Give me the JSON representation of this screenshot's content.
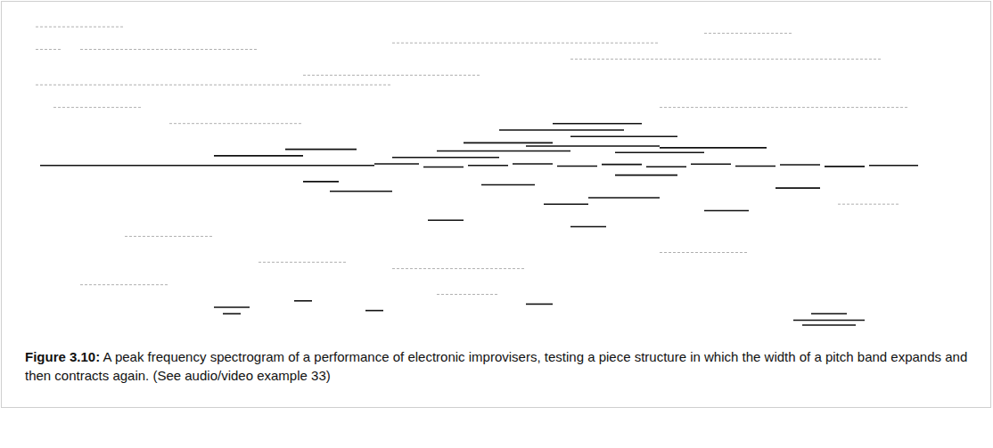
{
  "chart_data": {
    "type": "spectrogram",
    "xlim": [
      0,
      100
    ],
    "ylim": [
      0,
      100
    ],
    "tick_labels": false,
    "series": [
      {
        "color": "#111111",
        "segments": [
          [
            0.5,
            38,
            52
          ],
          [
            38,
            43,
            52.5
          ],
          [
            43.5,
            48,
            51.5
          ],
          [
            48.5,
            53,
            52
          ],
          [
            53.5,
            58,
            52.5
          ],
          [
            58.5,
            63,
            51.8
          ],
          [
            63.5,
            68,
            52.3
          ],
          [
            68.5,
            73,
            51.6
          ],
          [
            73.5,
            78,
            52.4
          ],
          [
            78.5,
            83,
            51.8
          ],
          [
            83.5,
            88,
            52.2
          ],
          [
            88.5,
            93,
            51.7
          ],
          [
            93.5,
            99,
            52
          ],
          [
            20,
            30,
            55
          ],
          [
            28,
            36,
            57
          ],
          [
            45,
            60,
            56.5
          ],
          [
            48,
            58,
            59
          ],
          [
            55,
            70,
            58
          ],
          [
            60,
            72,
            61
          ],
          [
            52,
            66,
            63
          ],
          [
            65,
            75,
            56
          ],
          [
            70,
            82,
            57.5
          ],
          [
            58,
            68,
            65
          ],
          [
            40,
            52,
            54.5
          ],
          [
            33,
            40,
            44
          ],
          [
            50,
            56,
            46
          ],
          [
            57,
            62,
            40
          ],
          [
            62,
            70,
            42
          ],
          [
            75,
            80,
            38
          ],
          [
            44,
            48,
            35
          ],
          [
            60,
            64,
            33
          ],
          [
            83,
            88,
            45
          ],
          [
            30,
            34,
            47
          ],
          [
            65,
            72,
            49
          ],
          [
            20,
            24,
            8
          ],
          [
            21,
            23,
            6
          ],
          [
            55,
            58,
            9
          ],
          [
            85,
            93,
            4
          ],
          [
            86,
            92,
            2.5
          ],
          [
            87,
            91,
            6
          ],
          [
            29,
            31,
            10
          ],
          [
            37,
            39,
            7
          ]
        ]
      },
      {
        "color": "#9a9a9a",
        "segments": [
          [
            0,
            3,
            88
          ],
          [
            0,
            40,
            77
          ],
          [
            0,
            10,
            95
          ],
          [
            5,
            25,
            88
          ],
          [
            40,
            70,
            90
          ],
          [
            60,
            95,
            85
          ],
          [
            2,
            12,
            70
          ],
          [
            15,
            30,
            65
          ],
          [
            70,
            98,
            70
          ],
          [
            30,
            50,
            80
          ],
          [
            75,
            85,
            93
          ],
          [
            10,
            20,
            30
          ],
          [
            40,
            55,
            20
          ],
          [
            70,
            80,
            25
          ],
          [
            5,
            15,
            15
          ],
          [
            90,
            97,
            40
          ],
          [
            45,
            52,
            12
          ],
          [
            25,
            35,
            22
          ]
        ]
      }
    ]
  },
  "caption": {
    "label": "Figure 3.10:",
    "text": "A peak frequency spectrogram of a performance of electronic improvisers, testing a piece structure in which the width of a pitch band expands and then contracts again. (See audio/video example 33)"
  }
}
